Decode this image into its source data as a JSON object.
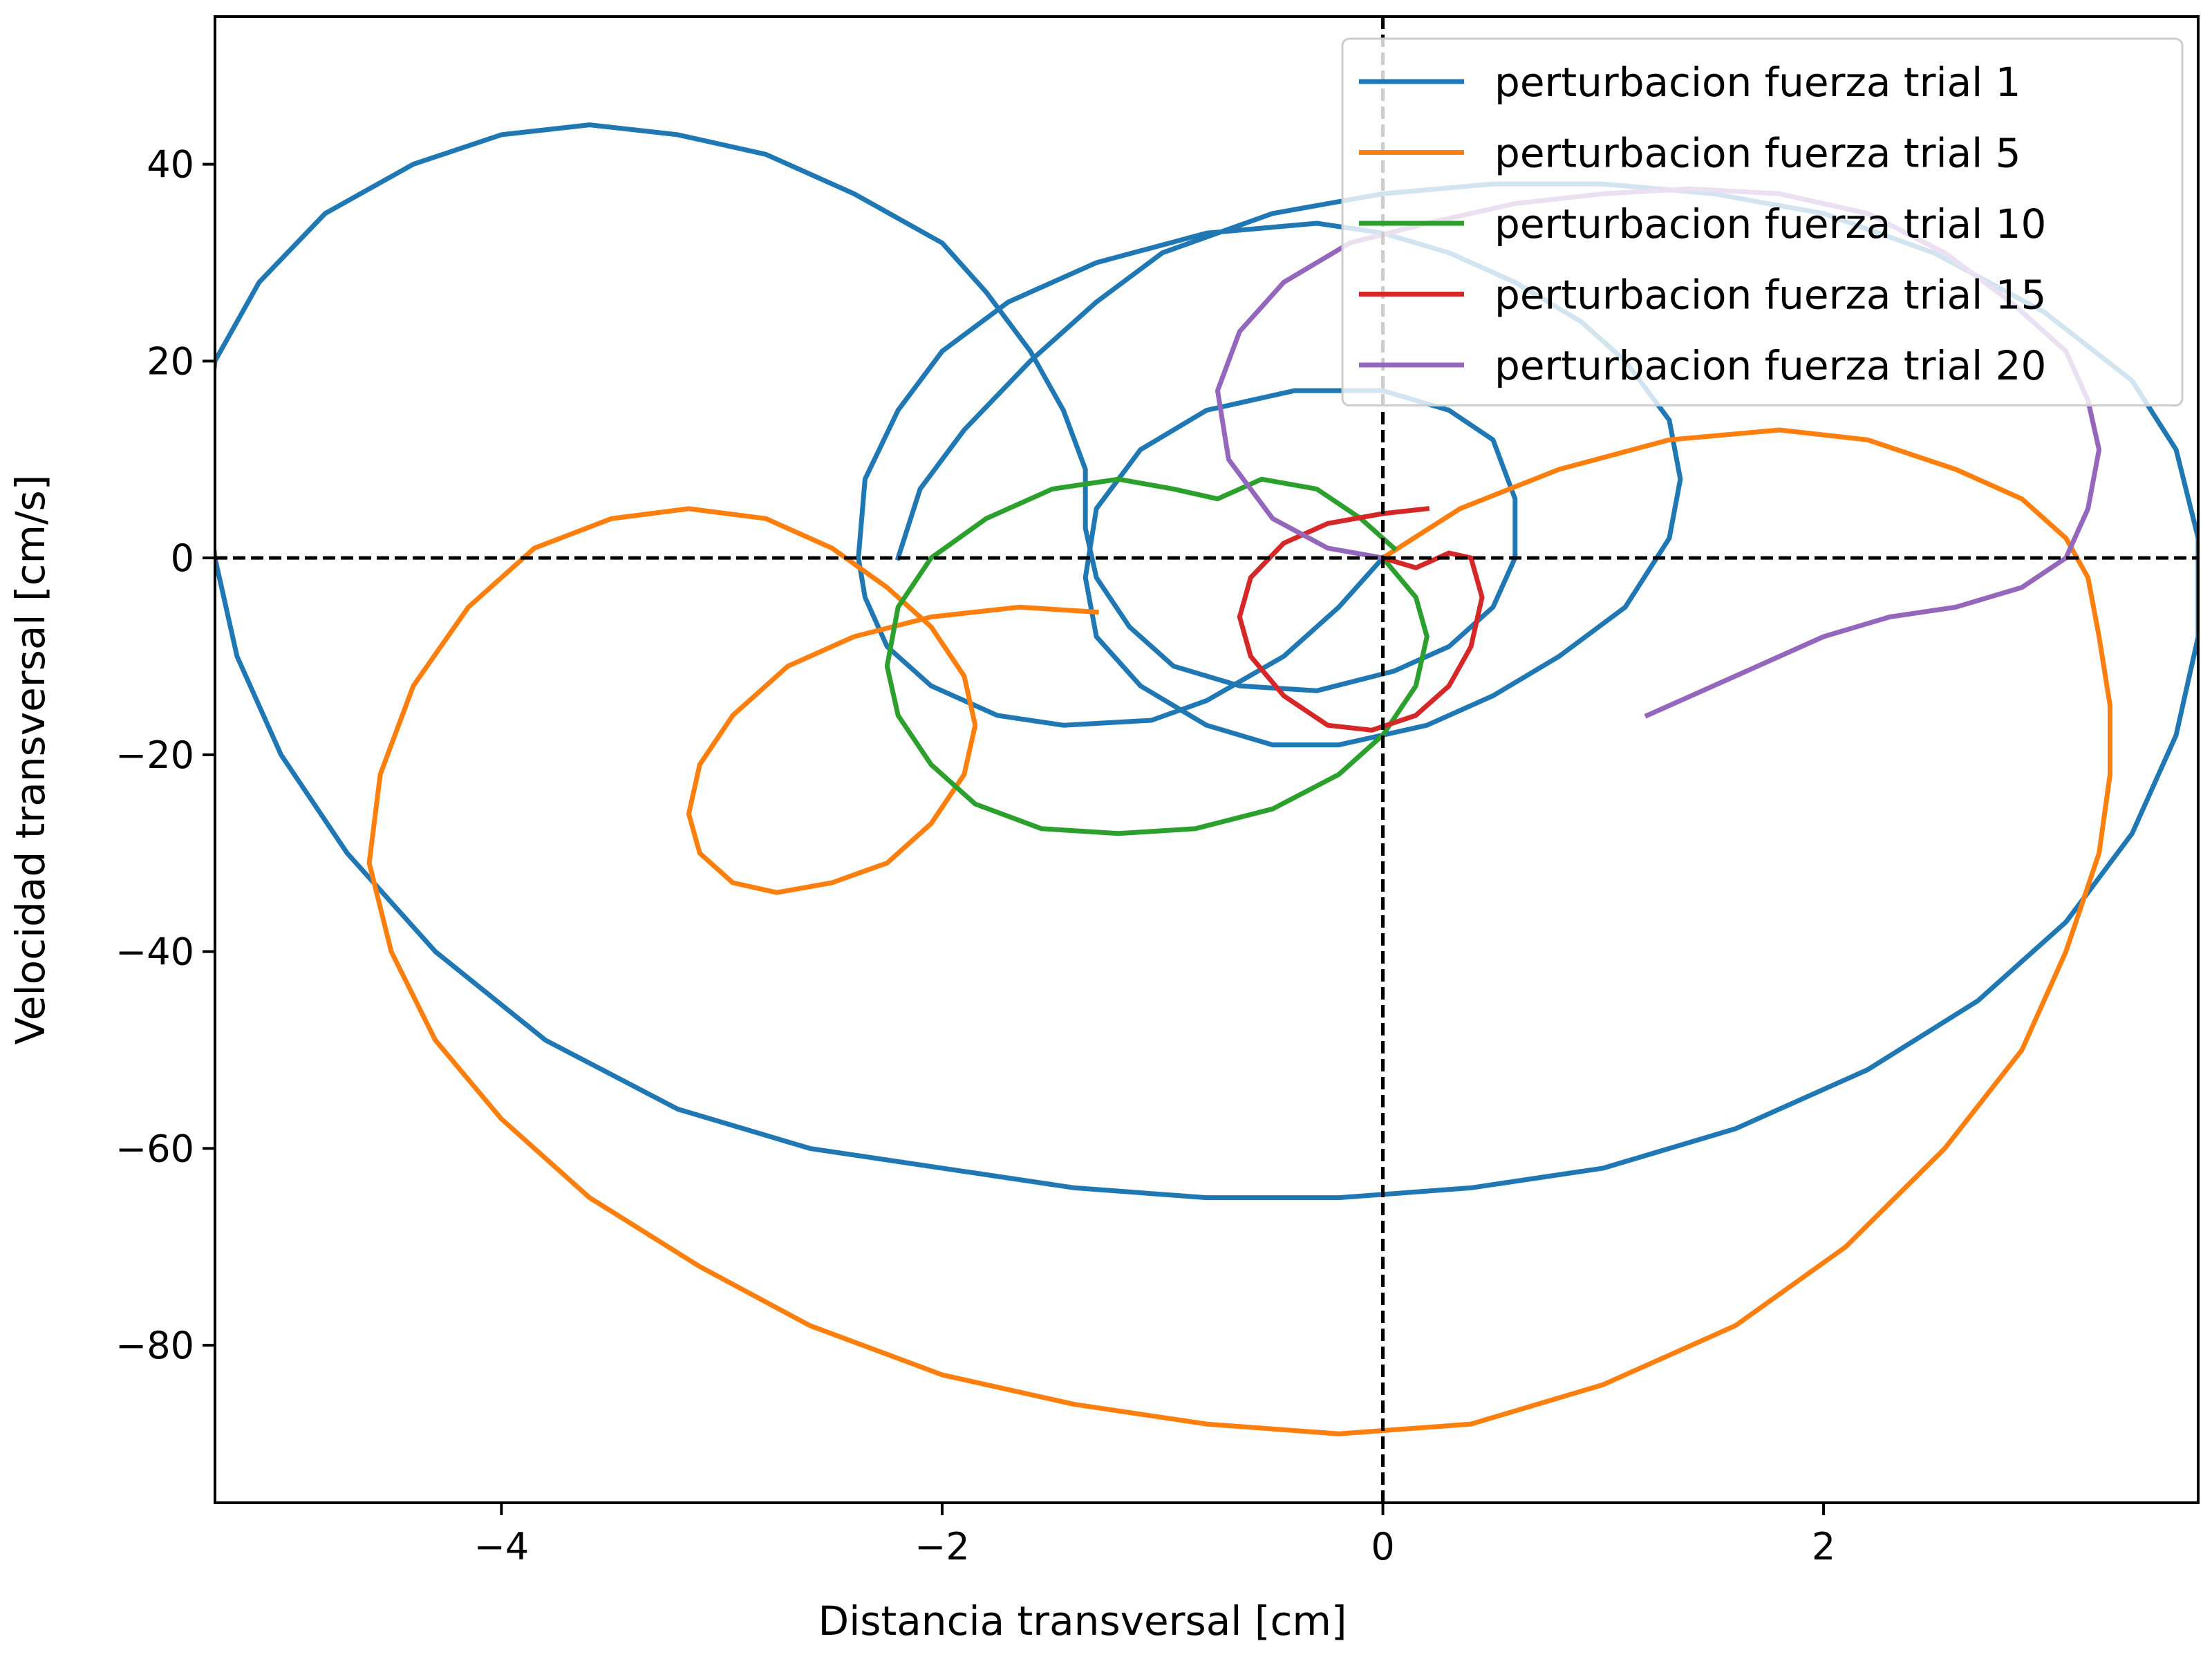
{
  "chart_data": {
    "type": "line",
    "title": "",
    "xlabel": "Distancia transversal [cm]",
    "ylabel": "Velocidad transversal [cm/s]",
    "xlim": [
      -5.3,
      3.7
    ],
    "ylim": [
      -96,
      55
    ],
    "xticks": [
      -4,
      -2,
      0,
      2
    ],
    "yticks": [
      40,
      20,
      0,
      -20,
      -40,
      -60,
      -80
    ],
    "xtick_labels": [
      "−4",
      "−2",
      "0",
      "2"
    ],
    "ytick_labels": [
      "40",
      "20",
      "0",
      "−20",
      "−40",
      "−60",
      "−80"
    ],
    "reference_lines": {
      "x": 0,
      "y": 0,
      "style": "dashed",
      "color": "#000000"
    },
    "grid": false,
    "legend_position": "top-right",
    "series": [
      {
        "name": "perturbacion fuerza trial 1",
        "color": "#1f77b4",
        "points": [
          [
            0,
            0
          ],
          [
            -0.2,
            -5
          ],
          [
            -0.45,
            -10
          ],
          [
            -0.8,
            -14.5
          ],
          [
            -1.05,
            -16.5
          ],
          [
            -1.45,
            -17
          ],
          [
            -1.75,
            -16
          ],
          [
            -2.05,
            -13
          ],
          [
            -2.25,
            -9
          ],
          [
            -2.35,
            -4
          ],
          [
            -2.38,
            0
          ],
          [
            -2.35,
            8
          ],
          [
            -2.2,
            15
          ],
          [
            -2.0,
            21
          ],
          [
            -1.7,
            26
          ],
          [
            -1.3,
            30
          ],
          [
            -0.8,
            33
          ],
          [
            -0.3,
            34
          ],
          [
            0.0,
            33
          ],
          [
            0.3,
            31
          ],
          [
            0.6,
            28
          ],
          [
            0.9,
            24
          ],
          [
            1.1,
            20
          ],
          [
            1.3,
            14
          ],
          [
            1.35,
            8
          ],
          [
            1.3,
            2
          ],
          [
            1.1,
            -5
          ],
          [
            0.8,
            -10
          ],
          [
            0.5,
            -14
          ],
          [
            0.2,
            -17
          ],
          [
            -0.2,
            -19
          ],
          [
            -0.5,
            -19
          ],
          [
            -0.8,
            -17
          ],
          [
            -1.1,
            -13
          ],
          [
            -1.3,
            -8
          ],
          [
            -1.35,
            -2
          ],
          [
            -1.3,
            5
          ],
          [
            -1.1,
            11
          ],
          [
            -0.8,
            15
          ],
          [
            -0.4,
            17
          ],
          [
            0.0,
            17
          ],
          [
            0.3,
            15
          ],
          [
            0.5,
            12
          ],
          [
            0.6,
            6
          ],
          [
            0.6,
            0
          ],
          [
            0.5,
            -5
          ],
          [
            0.3,
            -9
          ],
          [
            0.05,
            -11.5
          ],
          [
            -0.3,
            -13.5
          ],
          [
            -0.65,
            -13
          ],
          [
            -0.95,
            -11
          ],
          [
            -1.15,
            -7
          ],
          [
            -1.3,
            -2
          ],
          [
            -1.35,
            3
          ],
          [
            -1.35,
            9
          ],
          [
            -1.45,
            15
          ],
          [
            -1.6,
            21
          ],
          [
            -1.8,
            27
          ],
          [
            -2.0,
            32
          ],
          [
            -2.4,
            37
          ],
          [
            -2.8,
            41
          ],
          [
            -3.2,
            43
          ],
          [
            -3.6,
            44
          ],
          [
            -4.0,
            43
          ],
          [
            -4.4,
            40
          ],
          [
            -4.8,
            35
          ],
          [
            -5.1,
            28
          ],
          [
            -5.3,
            20
          ],
          [
            -5.35,
            10
          ],
          [
            -5.3,
            0
          ],
          [
            -5.2,
            -10
          ],
          [
            -5.0,
            -20
          ],
          [
            -4.7,
            -30
          ],
          [
            -4.3,
            -40
          ],
          [
            -3.8,
            -49
          ],
          [
            -3.2,
            -56
          ],
          [
            -2.6,
            -60
          ],
          [
            -2.0,
            -62
          ],
          [
            -1.4,
            -64
          ],
          [
            -0.8,
            -65
          ],
          [
            -0.2,
            -65
          ],
          [
            0.4,
            -64
          ],
          [
            1.0,
            -62
          ],
          [
            1.6,
            -58
          ],
          [
            2.2,
            -52
          ],
          [
            2.7,
            -45
          ],
          [
            3.1,
            -37
          ],
          [
            3.4,
            -28
          ],
          [
            3.6,
            -18
          ],
          [
            3.7,
            -8
          ],
          [
            3.7,
            2
          ],
          [
            3.6,
            11
          ],
          [
            3.4,
            18
          ],
          [
            3.0,
            25
          ],
          [
            2.5,
            31
          ],
          [
            2.0,
            35
          ],
          [
            1.5,
            37
          ],
          [
            1.0,
            38
          ],
          [
            0.5,
            38
          ],
          [
            0.0,
            37
          ],
          [
            -0.5,
            35
          ],
          [
            -1.0,
            31
          ],
          [
            -1.3,
            26
          ],
          [
            -1.6,
            20
          ],
          [
            -1.9,
            13
          ],
          [
            -2.1,
            7
          ],
          [
            -2.2,
            0
          ]
        ]
      },
      {
        "name": "perturbacion fuerza trial 5",
        "color": "#ff7f0e",
        "points": [
          [
            0,
            0
          ],
          [
            0.35,
            5
          ],
          [
            0.8,
            9
          ],
          [
            1.3,
            12
          ],
          [
            1.8,
            13
          ],
          [
            2.2,
            12
          ],
          [
            2.6,
            9
          ],
          [
            2.9,
            6
          ],
          [
            3.1,
            2
          ],
          [
            3.2,
            -2
          ],
          [
            3.25,
            -8
          ],
          [
            3.3,
            -15
          ],
          [
            3.3,
            -22
          ],
          [
            3.25,
            -30
          ],
          [
            3.1,
            -40
          ],
          [
            2.9,
            -50
          ],
          [
            2.55,
            -60
          ],
          [
            2.1,
            -70
          ],
          [
            1.6,
            -78
          ],
          [
            1.0,
            -84
          ],
          [
            0.4,
            -88
          ],
          [
            -0.2,
            -89
          ],
          [
            -0.8,
            -88
          ],
          [
            -1.4,
            -86
          ],
          [
            -2.0,
            -83
          ],
          [
            -2.6,
            -78
          ],
          [
            -3.1,
            -72
          ],
          [
            -3.6,
            -65
          ],
          [
            -4.0,
            -57
          ],
          [
            -4.3,
            -49
          ],
          [
            -4.5,
            -40
          ],
          [
            -4.6,
            -31
          ],
          [
            -4.55,
            -22
          ],
          [
            -4.4,
            -13
          ],
          [
            -4.15,
            -5
          ],
          [
            -3.85,
            1
          ],
          [
            -3.5,
            4
          ],
          [
            -3.15,
            5
          ],
          [
            -2.8,
            4
          ],
          [
            -2.5,
            1
          ],
          [
            -2.25,
            -3
          ],
          [
            -2.05,
            -7
          ],
          [
            -1.9,
            -12
          ],
          [
            -1.85,
            -17
          ],
          [
            -1.9,
            -22
          ],
          [
            -2.05,
            -27
          ],
          [
            -2.25,
            -31
          ],
          [
            -2.5,
            -33
          ],
          [
            -2.75,
            -34
          ],
          [
            -2.95,
            -33
          ],
          [
            -3.1,
            -30
          ],
          [
            -3.15,
            -26
          ],
          [
            -3.1,
            -21
          ],
          [
            -2.95,
            -16
          ],
          [
            -2.7,
            -11
          ],
          [
            -2.4,
            -8
          ],
          [
            -2.05,
            -6
          ],
          [
            -1.65,
            -5
          ],
          [
            -1.3,
            -5.5
          ]
        ]
      },
      {
        "name": "perturbacion fuerza trial 10",
        "color": "#2ca02c",
        "points": [
          [
            0,
            0
          ],
          [
            0.15,
            -4
          ],
          [
            0.2,
            -8
          ],
          [
            0.15,
            -13
          ],
          [
            0.0,
            -18
          ],
          [
            -0.2,
            -22
          ],
          [
            -0.5,
            -25.5
          ],
          [
            -0.85,
            -27.5
          ],
          [
            -1.2,
            -28
          ],
          [
            -1.55,
            -27.5
          ],
          [
            -1.85,
            -25
          ],
          [
            -2.05,
            -21
          ],
          [
            -2.2,
            -16
          ],
          [
            -2.25,
            -11
          ],
          [
            -2.2,
            -5
          ],
          [
            -2.05,
            0
          ],
          [
            -1.8,
            4
          ],
          [
            -1.5,
            7
          ],
          [
            -1.2,
            8
          ],
          [
            -0.95,
            7
          ],
          [
            -0.75,
            6
          ],
          [
            -0.55,
            8
          ],
          [
            -0.3,
            7
          ],
          [
            -0.1,
            4
          ],
          [
            0.05,
            1
          ]
        ]
      },
      {
        "name": "perturbacion fuerza trial 15",
        "color": "#d62728",
        "points": [
          [
            0,
            0
          ],
          [
            0.15,
            -1
          ],
          [
            0.3,
            0.5
          ],
          [
            0.4,
            0
          ],
          [
            0.45,
            -4
          ],
          [
            0.4,
            -9
          ],
          [
            0.3,
            -13
          ],
          [
            0.15,
            -16
          ],
          [
            -0.05,
            -17.5
          ],
          [
            -0.25,
            -17
          ],
          [
            -0.45,
            -14
          ],
          [
            -0.6,
            -10
          ],
          [
            -0.65,
            -6
          ],
          [
            -0.6,
            -2
          ],
          [
            -0.45,
            1.5
          ],
          [
            -0.25,
            3.5
          ],
          [
            0.0,
            4.5
          ],
          [
            0.2,
            5
          ]
        ]
      },
      {
        "name": "perturbacion fuerza trial 20",
        "color": "#9467bd",
        "points": [
          [
            0,
            0
          ],
          [
            -0.25,
            1
          ],
          [
            -0.5,
            4
          ],
          [
            -0.7,
            10
          ],
          [
            -0.75,
            17
          ],
          [
            -0.65,
            23
          ],
          [
            -0.45,
            28
          ],
          [
            -0.15,
            32
          ],
          [
            0.2,
            34
          ],
          [
            0.6,
            36
          ],
          [
            1.0,
            37
          ],
          [
            1.4,
            37.5
          ],
          [
            1.8,
            37
          ],
          [
            2.2,
            35
          ],
          [
            2.55,
            31
          ],
          [
            2.85,
            26
          ],
          [
            3.1,
            21
          ],
          [
            3.2,
            16
          ],
          [
            3.25,
            11
          ],
          [
            3.2,
            5
          ],
          [
            3.1,
            0
          ],
          [
            2.9,
            -3
          ],
          [
            2.6,
            -5
          ],
          [
            2.3,
            -6
          ],
          [
            2.0,
            -8
          ],
          [
            1.6,
            -12
          ],
          [
            1.2,
            -16
          ]
        ]
      }
    ]
  }
}
